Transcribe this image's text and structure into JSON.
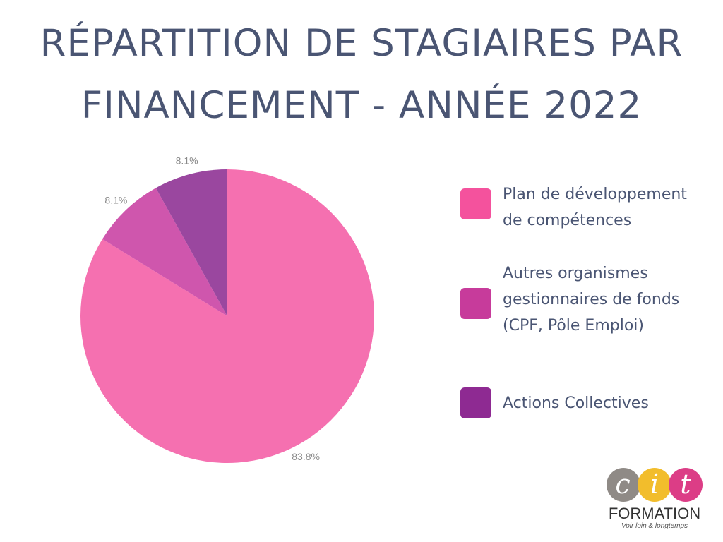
{
  "title_line1": "RÉPARTITION DE STAGIAIRES PAR",
  "title_line2": "FINANCEMENT - ANNÉE 2022",
  "chart_data": {
    "type": "pie",
    "title": "RÉPARTITION DE STAGIAIRES PAR FINANCEMENT - ANNÉE 2022",
    "categories": [
      "Plan de développement de compétences",
      "Autres organismes gestionnaires de fonds (CPF, Pôle Emploi)",
      "Actions Collectives"
    ],
    "values": [
      83.8,
      8.1,
      8.1
    ],
    "labels": [
      "83.8%",
      "8.1%",
      "8.1%"
    ],
    "colors": [
      "#f570b0",
      "#cf56ad",
      "#9a479f"
    ],
    "legend_colors": [
      "#f4529d",
      "#c73b9b",
      "#8e2a92"
    ],
    "legend_position": "right"
  },
  "legend": [
    {
      "label": "Plan de développement\nde compétences"
    },
    {
      "label": "Autres organismes\ngestionnaires de fonds\n(CPF, Pôle Emploi)"
    },
    {
      "label": "Actions Collectives"
    }
  ],
  "logo": {
    "text": "FORMATION",
    "tagline": "Voir loin & longtemps",
    "colors": [
      "#8f8a86",
      "#f2bd2c",
      "#dc3d86"
    ]
  }
}
